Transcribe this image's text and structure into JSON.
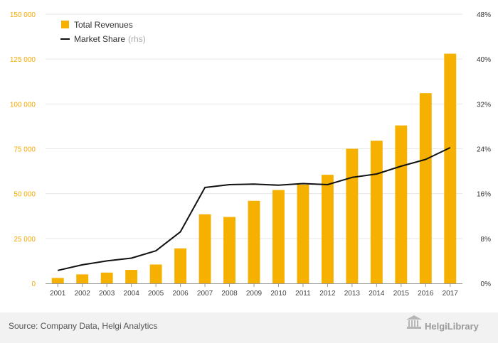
{
  "chart_data": {
    "type": "bar",
    "categories": [
      "2001",
      "2002",
      "2003",
      "2004",
      "2005",
      "2006",
      "2007",
      "2008",
      "2009",
      "2010",
      "2011",
      "2012",
      "2013",
      "2014",
      "2015",
      "2016",
      "2017"
    ],
    "series": [
      {
        "name": "Total Revenues",
        "type": "bar",
        "axis": "left",
        "color": "#f5b000",
        "values": [
          3000,
          5000,
          6000,
          7500,
          10500,
          19500,
          38500,
          37000,
          46000,
          52000,
          55000,
          60500,
          75000,
          79500,
          88000,
          106000,
          128000
        ]
      },
      {
        "name": "Market Share",
        "name_suffix": "(rhs)",
        "type": "line",
        "axis": "right",
        "color": "#111111",
        "values": [
          2.3,
          3.3,
          4.0,
          4.5,
          5.8,
          9.2,
          17.1,
          17.6,
          17.7,
          17.5,
          17.8,
          17.6,
          18.9,
          19.5,
          20.9,
          22.1,
          24.2
        ]
      }
    ],
    "ylim_left": [
      0,
      150000
    ],
    "yticks_left": [
      "0",
      "25 000",
      "50 000",
      "75 000",
      "100 000",
      "125 000",
      "150 000"
    ],
    "ylim_right": [
      0,
      48
    ],
    "yticks_right": [
      "0%",
      "8%",
      "16%",
      "24%",
      "32%",
      "40%",
      "48%"
    ],
    "grid": true,
    "legend_position": "top-left"
  },
  "footer": {
    "source": "Source: Company Data, Helgi Analytics",
    "brand": "HelgiLibrary"
  },
  "colors": {
    "bar": "#f5b000",
    "line": "#111111",
    "grid": "#e6e6e6",
    "footer_bg": "#f2f2f2"
  }
}
